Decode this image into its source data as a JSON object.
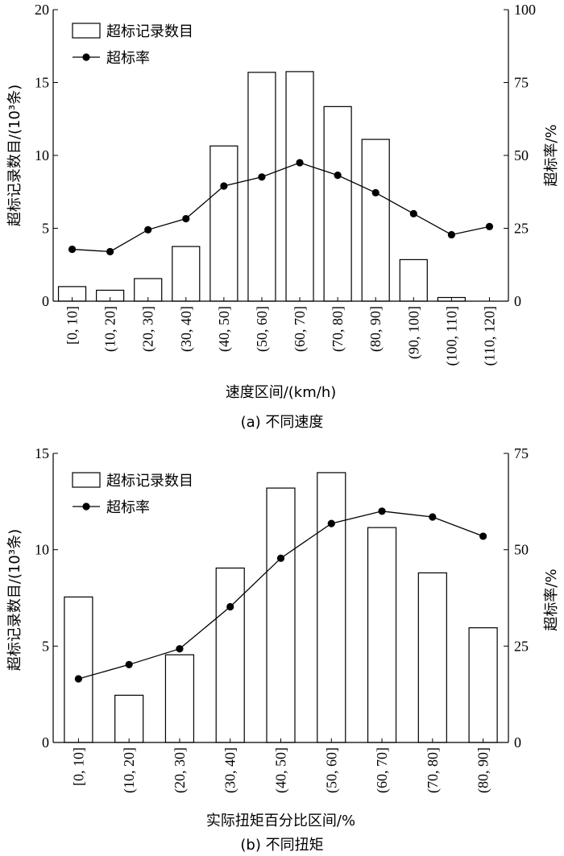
{
  "chart_data": [
    {
      "type": "bar",
      "caption": "(a)  不同速度",
      "categories": [
        "[0, 10]",
        "(10, 20]",
        "(20, 30]",
        "(30, 40]",
        "(40, 50]",
        "(50, 60]",
        "(60, 70]",
        "(70, 80]",
        "(80, 90]",
        "(90, 100]",
        "(100, 110]",
        "(110, 120]"
      ],
      "xlabel": "速度区间/(km/h)",
      "ylabel": "超标记录数目/(10³条)",
      "y2label": "超标率/%",
      "ylim": [
        0,
        20
      ],
      "y2lim": [
        0,
        100
      ],
      "yticks": [
        "0",
        "5",
        "10",
        "15",
        "20"
      ],
      "y2ticks": [
        "0",
        "25",
        "50",
        "75",
        "100"
      ],
      "legend_position": "top-left",
      "series": [
        {
          "name": "超标记录数目",
          "kind": "bar",
          "axis": "left",
          "values": [
            1.0,
            0.75,
            1.55,
            3.75,
            10.65,
            15.7,
            15.75,
            13.35,
            11.1,
            2.85,
            0.25,
            0
          ]
        },
        {
          "name": "超标率",
          "kind": "line",
          "axis": "right",
          "values": [
            17.8,
            17.0,
            24.5,
            28.3,
            39.5,
            42.6,
            47.5,
            43.2,
            37.2,
            30.0,
            22.8,
            25.6
          ]
        }
      ]
    },
    {
      "type": "bar",
      "caption": "(b)  不同扭矩",
      "categories": [
        "[0, 10]",
        "(10, 20]",
        "(20, 30]",
        "(30, 40]",
        "(40, 50]",
        "(50, 60]",
        "(60, 70]",
        "(70, 80]",
        "(80, 90]"
      ],
      "xlabel": "实际扭矩百分比区间/%",
      "ylabel": "超标记录数目/(10³条)",
      "y2label": "超标率/%",
      "ylim": [
        0,
        15
      ],
      "y2lim": [
        0,
        75
      ],
      "yticks": [
        "0",
        "5",
        "10",
        "15"
      ],
      "y2ticks": [
        "0",
        "25",
        "50",
        "75"
      ],
      "legend_position": "top-left",
      "series": [
        {
          "name": "超标记录数目",
          "kind": "bar",
          "axis": "left",
          "values": [
            7.55,
            2.45,
            4.55,
            9.05,
            13.2,
            14.0,
            11.15,
            8.8,
            5.95
          ]
        },
        {
          "name": "超标率",
          "kind": "line",
          "axis": "right",
          "values": [
            16.5,
            20.2,
            24.3,
            35.2,
            47.8,
            56.8,
            60.0,
            58.5,
            53.5
          ]
        }
      ]
    }
  ]
}
